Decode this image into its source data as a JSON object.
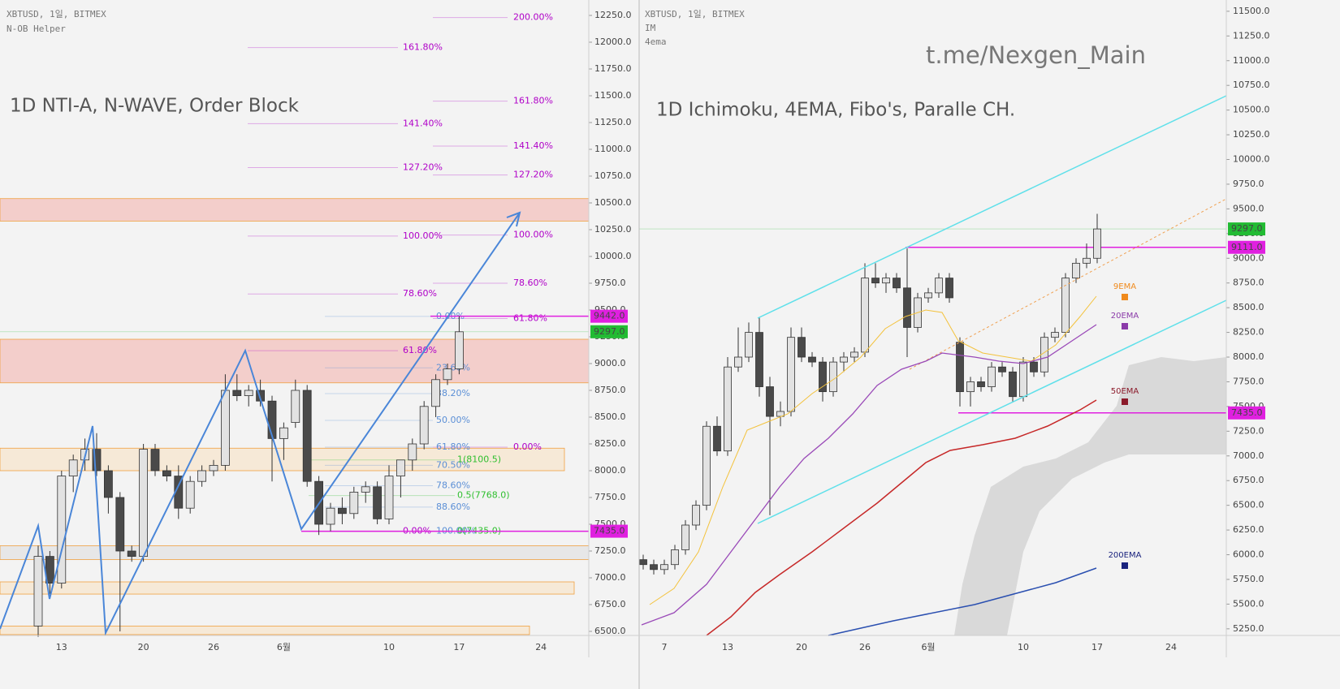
{
  "chart_data": [
    {
      "type": "candlestick",
      "title": "1D NTI-A, N-WAVE, Order Block",
      "source": "XBTUSD, 1일, BITMEX",
      "indicators": [
        "N-OB Helper"
      ],
      "categories": [
        null,
        null,
        "13",
        null,
        null,
        null,
        null,
        null,
        null,
        "20",
        null,
        null,
        null,
        null,
        null,
        "26",
        null,
        null,
        null,
        null,
        null,
        "6월",
        null,
        null,
        null,
        null,
        null,
        null,
        null,
        null,
        "10",
        null,
        null,
        null,
        null,
        null,
        "17",
        null,
        null,
        null,
        null,
        null,
        null,
        "24",
        null,
        null,
        null
      ],
      "open": [
        6550,
        7200,
        6950,
        7950,
        8100,
        8200,
        8000,
        7750,
        7250,
        7200,
        8200,
        8000,
        7950,
        7650,
        7900,
        8000,
        8050,
        8750,
        8700,
        8750,
        8650,
        8300,
        8450,
        8750,
        7900,
        7500,
        7650,
        7600,
        7800,
        7850,
        7550,
        7950,
        8100,
        8250,
        8600,
        8850,
        8950,
        null,
        null,
        null,
        null,
        null,
        null,
        null,
        null,
        null,
        null
      ],
      "high": [
        7300,
        7250,
        8000,
        8150,
        8300,
        8350,
        8050,
        7800,
        7300,
        8250,
        8250,
        8050,
        8050,
        7950,
        8050,
        8100,
        8900,
        8900,
        8800,
        8850,
        8700,
        8450,
        8850,
        8800,
        7950,
        7700,
        7750,
        7850,
        7900,
        7900,
        8050,
        8100,
        8300,
        8650,
        8900,
        9000,
        9442,
        null,
        null,
        null,
        null,
        null,
        null,
        null,
        null,
        null,
        null
      ],
      "low": [
        6450,
        6850,
        6900,
        7800,
        8000,
        7950,
        7600,
        6500,
        7150,
        7150,
        7950,
        7900,
        7550,
        7600,
        7850,
        7950,
        8000,
        8650,
        8600,
        8600,
        7900,
        8100,
        8400,
        7850,
        7400,
        7435,
        7500,
        7550,
        7700,
        7500,
        7500,
        7750,
        8000,
        8200,
        8500,
        8800,
        8900,
        null,
        null,
        null,
        null,
        null,
        null,
        null,
        null,
        null,
        null
      ],
      "close": [
        7200,
        6950,
        7950,
        8100,
        8200,
        8000,
        7750,
        7250,
        7200,
        8200,
        8000,
        7950,
        7650,
        7900,
        8000,
        8050,
        8750,
        8700,
        8750,
        8650,
        8300,
        8400,
        8750,
        7900,
        7500,
        7650,
        7600,
        7800,
        7850,
        7550,
        7950,
        8100,
        8250,
        8600,
        8850,
        8950,
        9297,
        null,
        null,
        null,
        null,
        null,
        null,
        null,
        null,
        null,
        null
      ],
      "bull_color": "#e2e2e2",
      "bear_color": "#4a4a4a",
      "ylim": [
        6462,
        12394
      ],
      "yticks": [
        {
          "value": 6500,
          "label": "6500.0"
        },
        {
          "value": 6750,
          "label": "6750.0"
        },
        {
          "value": 7000,
          "label": "7000.0"
        },
        {
          "value": 7250,
          "label": "7250.0"
        },
        {
          "value": 7500,
          "label": "7500.0"
        },
        {
          "value": 7750,
          "label": "7750.0"
        },
        {
          "value": 8000,
          "label": "8000.0"
        },
        {
          "value": 8250,
          "label": "8250.0"
        },
        {
          "value": 8500,
          "label": "8500.0"
        },
        {
          "value": 8750,
          "label": "8750.0"
        },
        {
          "value": 9000,
          "label": "9000.0"
        },
        {
          "value": 9250,
          "label": "9250.0"
        },
        {
          "value": 9500,
          "label": "9500.0"
        },
        {
          "value": 9750,
          "label": "9750.0"
        },
        {
          "value": 10000,
          "label": "10000.0"
        },
        {
          "value": 10250,
          "label": "10250.0"
        },
        {
          "value": 10500,
          "label": "10500.0"
        },
        {
          "value": 10750,
          "label": "10750.0"
        },
        {
          "value": 11000,
          "label": "11000.0"
        },
        {
          "value": 11250,
          "label": "11250.0"
        },
        {
          "value": 11500,
          "label": "11500.0"
        },
        {
          "value": 11750,
          "label": "11750.0"
        },
        {
          "value": 12000,
          "label": "12000.0"
        },
        {
          "value": 12250,
          "label": "12250.0"
        }
      ],
      "zones": [
        {
          "from": 10330,
          "to": 10540,
          "color": "#f4b6b0"
        },
        {
          "from": 8820,
          "to": 9227,
          "color": "#f4b6b0"
        },
        {
          "from": 8000,
          "to": 8210,
          "color": "#f8e3c4"
        },
        {
          "from": 7170,
          "to": 7300,
          "color": "#e0e0e0"
        },
        {
          "from": 6848,
          "to": 6962,
          "color": "#f8e3c4"
        },
        {
          "from": 6470,
          "to": 6550,
          "color": "#f8e3c4"
        }
      ],
      "fib_sets": [
        {
          "color": "#b000c8",
          "levels": [
            {
              "label": "161.80%",
              "value": 11950
            },
            {
              "label": "141.40%",
              "value": 11240
            },
            {
              "label": "127.20%",
              "value": 10830
            },
            {
              "label": "100.00%",
              "value": 10190
            },
            {
              "label": "78.60%",
              "value": 9650
            },
            {
              "label": "61.80%",
              "value": 9120
            }
          ]
        },
        {
          "color": "#b000c8",
          "levels": [
            {
              "label": "200.00%",
              "value": 12230
            },
            {
              "label": "161.80%",
              "value": 11450
            },
            {
              "label": "141.40%",
              "value": 11030
            },
            {
              "label": "127.20%",
              "value": 10760
            },
            {
              "label": "100.00%",
              "value": 10200
            },
            {
              "label": "78.60%",
              "value": 9750
            },
            {
              "label": "61.80%",
              "value": 9420
            },
            {
              "label": "0.00%",
              "value": 8220
            }
          ]
        },
        {
          "color": "#5b8fd6",
          "levels": [
            {
              "label": "0.00%",
              "value": 9440
            },
            {
              "label": "23.60%",
              "value": 8960
            },
            {
              "label": "38.20%",
              "value": 8720
            },
            {
              "label": "50.00%",
              "value": 8470
            },
            {
              "label": "61.80%",
              "value": 8220
            },
            {
              "label": "70.50%",
              "value": 8050
            },
            {
              "label": "78.60%",
              "value": 7860
            },
            {
              "label": "88.60%",
              "value": 7660
            },
            {
              "label": "100.00%",
              "value": 7435
            }
          ]
        },
        {
          "color": "#2fbf2f",
          "levels": [
            {
              "label": "1(8100.5)",
              "value": 8100.5
            },
            {
              "label": "0.5(7768.0)",
              "value": 7768
            },
            {
              "label": "0(7435.0)",
              "value": 7435
            }
          ]
        },
        {
          "color": "#b000c8",
          "levels": [
            {
              "label": "0.00%",
              "value": 7435
            }
          ]
        }
      ],
      "price_tags": [
        {
          "label": "9442.0",
          "value": 9442,
          "color": "#e020e0"
        },
        {
          "label": "9297.0",
          "value": 9297,
          "color": "#22bb33"
        },
        {
          "label": "7435.0",
          "value": 7435,
          "color": "#e020e0"
        }
      ]
    },
    {
      "type": "candlestick",
      "title": "1D Ichimoku, 4EMA, Fibo's, Paralle CH.",
      "source": "XBTUSD, 1일, BITMEX",
      "indicators": [
        "IM",
        "4ema"
      ],
      "watermark": "t.me/Nexgen_Main",
      "categories": [
        null,
        null,
        "7",
        null,
        null,
        null,
        null,
        null,
        "13",
        null,
        null,
        null,
        null,
        null,
        null,
        "20",
        null,
        null,
        null,
        null,
        null,
        "26",
        null,
        null,
        null,
        null,
        null,
        "6월",
        null,
        null,
        null,
        null,
        null,
        null,
        null,
        null,
        "10",
        null,
        null,
        null,
        null,
        null,
        null,
        "17",
        null,
        null,
        null,
        null,
        null,
        null,
        "24",
        null,
        null,
        null
      ],
      "open": [
        5950,
        5900,
        5850,
        5900,
        6050,
        6300,
        6500,
        7300,
        7050,
        7900,
        8000,
        8250,
        7700,
        7400,
        7450,
        8200,
        8000,
        7950,
        7650,
        7950,
        8000,
        8050,
        8800,
        8750,
        8800,
        8700,
        8300,
        8600,
        8650,
        8800,
        8150,
        7650,
        7750,
        7700,
        7900,
        7850,
        7600,
        7950,
        7850,
        8200,
        8250,
        8800,
        8950,
        9000,
        null,
        null,
        null,
        null,
        null,
        null,
        null,
        null,
        null,
        null
      ],
      "high": [
        6000,
        5950,
        5950,
        6100,
        6350,
        6550,
        7350,
        7400,
        8000,
        8300,
        8350,
        8400,
        7800,
        7550,
        8300,
        8300,
        8050,
        8000,
        8000,
        8050,
        8100,
        8950,
        8950,
        8850,
        8850,
        9100,
        8650,
        8700,
        8850,
        8850,
        8200,
        7800,
        7800,
        7950,
        7950,
        7900,
        8000,
        8000,
        8250,
        8300,
        8850,
        9000,
        9150,
        9450,
        null,
        null,
        null,
        null,
        null,
        null,
        null,
        null,
        null,
        null
      ],
      "low": [
        5850,
        5800,
        5800,
        5850,
        6000,
        6250,
        6450,
        7000,
        7000,
        7850,
        7950,
        7600,
        6400,
        7300,
        7400,
        7950,
        7900,
        7550,
        7600,
        7850,
        7950,
        8000,
        8700,
        8650,
        8650,
        8000,
        8250,
        8550,
        8600,
        8550,
        7500,
        7500,
        7650,
        7650,
        7800,
        7550,
        7550,
        7800,
        7800,
        8150,
        8200,
        8750,
        8900,
        8950,
        null,
        null,
        null,
        null,
        null,
        null,
        null,
        null,
        null,
        null
      ],
      "close": [
        5900,
        5850,
        5900,
        6050,
        6300,
        6500,
        7300,
        7050,
        7900,
        8000,
        8250,
        7700,
        7400,
        7450,
        8200,
        8000,
        7950,
        7650,
        7950,
        8000,
        8050,
        8800,
        8750,
        8800,
        8700,
        8300,
        8600,
        8650,
        8800,
        8600,
        7650,
        7750,
        7700,
        7900,
        7850,
        7600,
        7950,
        7850,
        8200,
        8250,
        8800,
        8950,
        9000,
        9297,
        null,
        null,
        null,
        null,
        null,
        null,
        null,
        null,
        null,
        null
      ],
      "bull_color": "#e2e2e2",
      "bear_color": "#4a4a4a",
      "ylim": [
        5183,
        11614
      ],
      "yticks": [
        {
          "value": 5250,
          "label": "5250.0"
        },
        {
          "value": 5500,
          "label": "5500.0"
        },
        {
          "value": 5750,
          "label": "5750.0"
        },
        {
          "value": 6000,
          "label": "6000.0"
        },
        {
          "value": 6250,
          "label": "6250.0"
        },
        {
          "value": 6500,
          "label": "6500.0"
        },
        {
          "value": 6750,
          "label": "6750.0"
        },
        {
          "value": 7000,
          "label": "7000.0"
        },
        {
          "value": 7250,
          "label": "7250.0"
        },
        {
          "value": 7500,
          "label": "7500.0"
        },
        {
          "value": 7750,
          "label": "7750.0"
        },
        {
          "value": 8000,
          "label": "8000.0"
        },
        {
          "value": 8250,
          "label": "8250.0"
        },
        {
          "value": 8500,
          "label": "8500.0"
        },
        {
          "value": 8750,
          "label": "8750.0"
        },
        {
          "value": 9000,
          "label": "9000.0"
        },
        {
          "value": 9250,
          "label": "9250.0"
        },
        {
          "value": 9500,
          "label": "9500.0"
        },
        {
          "value": 9750,
          "label": "9750.0"
        },
        {
          "value": 10000,
          "label": "10000.0"
        },
        {
          "value": 10250,
          "label": "10250.0"
        },
        {
          "value": 10500,
          "label": "10500.0"
        },
        {
          "value": 10750,
          "label": "10750.0"
        },
        {
          "value": 11000,
          "label": "11000.0"
        },
        {
          "value": 11250,
          "label": "11250.0"
        },
        {
          "value": 11500,
          "label": "11500.0"
        }
      ],
      "zones": [],
      "fib_sets": [],
      "price_tags": [
        {
          "label": "9297.0",
          "value": 9297,
          "color": "#22bb33"
        },
        {
          "label": "9111.0",
          "value": 9111,
          "color": "#e020e0"
        },
        {
          "label": "7435.0",
          "value": 7435,
          "color": "#e020e0"
        }
      ],
      "legend": [
        {
          "name": "9EMA",
          "color": "#f08a1c"
        },
        {
          "name": "20EMA",
          "color": "#8a3aa8"
        },
        {
          "name": "50EMA",
          "color": "#8b1a2a"
        },
        {
          "name": "200EMA",
          "color": "#1a237e"
        }
      ]
    }
  ]
}
